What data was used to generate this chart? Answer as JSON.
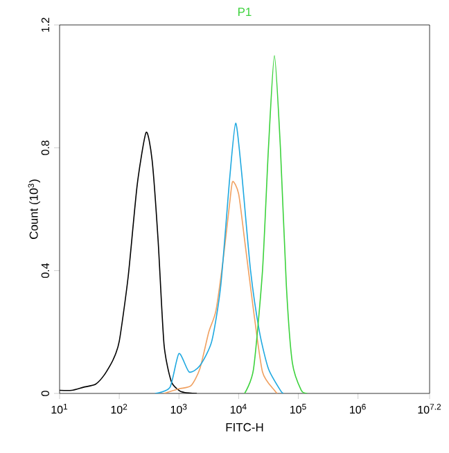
{
  "chart_data": {
    "type": "line",
    "title": "P1",
    "xlabel": "FITC-H",
    "ylabel": "Count (10$^{3}$)",
    "log": "x",
    "xlim": [
      10,
      15848932
    ],
    "ylim": [
      0,
      1.2
    ],
    "xticks": [
      {
        "value": 10,
        "label": "10$^{1}$"
      },
      {
        "value": 100,
        "label": "10$^{2}$"
      },
      {
        "value": 1000,
        "label": "10$^{3}$"
      },
      {
        "value": 10000,
        "label": "10$^{4}$"
      },
      {
        "value": 100000,
        "label": "10$^{5}$"
      },
      {
        "value": 1000000,
        "label": "10$^{6}$"
      },
      {
        "value": 15848932,
        "label": "10$^{7.2}$"
      }
    ],
    "yticks": [
      0,
      0.4,
      0.8,
      1.2
    ],
    "series": [
      {
        "color": "#000000",
        "x": [
          10,
          16,
          25,
          40,
          56,
          79,
          100,
          141,
          200,
          282,
          355,
          447,
          562,
          741,
          1000,
          1259,
          1995
        ],
        "values": [
          0.01,
          0.01,
          0.02,
          0.03,
          0.06,
          0.11,
          0.17,
          0.38,
          0.68,
          0.85,
          0.76,
          0.5,
          0.16,
          0.04,
          0.01,
          0.003,
          0
        ]
      },
      {
        "color": "#f0a060",
        "x": [
          562,
          1000,
          1585,
          2239,
          3162,
          4169,
          5623,
          7079,
          7943,
          10000,
          12589,
          17783,
          25119,
          39811,
          44668
        ],
        "values": [
          0,
          0.015,
          0.025,
          0.08,
          0.2,
          0.27,
          0.45,
          0.62,
          0.69,
          0.65,
          0.5,
          0.27,
          0.07,
          0.01,
          0
        ]
      },
      {
        "color": "#1ea8e0",
        "x": [
          398,
          708,
          1000,
          1479,
          2239,
          3548,
          5012,
          7079,
          8913,
          11220,
          15849,
          22387,
          31623,
          50119,
          56234
        ],
        "values": [
          0,
          0.02,
          0.13,
          0.07,
          0.09,
          0.17,
          0.35,
          0.7,
          0.88,
          0.72,
          0.4,
          0.2,
          0.08,
          0.01,
          0
        ]
      },
      {
        "color": "#3cd23c",
        "x": [
          12589,
          17783,
          25119,
          31623,
          39811,
          50119,
          63096,
          79433,
          112202,
          141254
        ],
        "values": [
          0,
          0.08,
          0.4,
          0.8,
          1.1,
          0.8,
          0.35,
          0.1,
          0.01,
          0
        ]
      }
    ]
  }
}
